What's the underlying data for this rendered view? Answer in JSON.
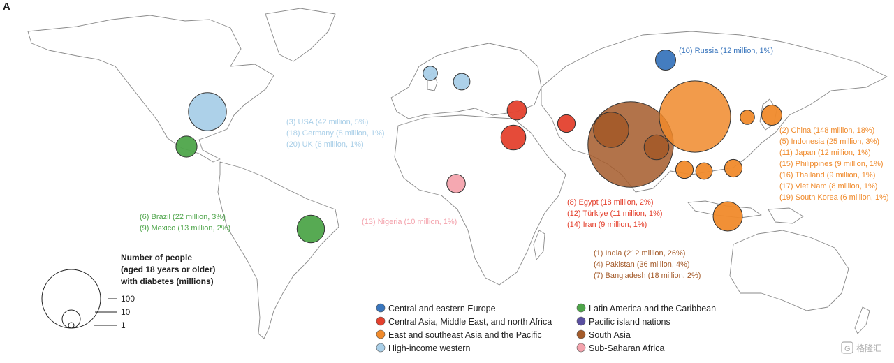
{
  "panel_label": "A",
  "colors": {
    "central_eastern_europe": "#3a76bd",
    "central_asia_mena": "#e4412e",
    "east_se_asia_pacific": "#f08a2b",
    "high_income_western": "#a9cfe8",
    "latin_america_caribbean": "#4ea54a",
    "pacific_islands": "#5a4fa0",
    "south_asia": "#a45b2a",
    "sub_saharan_africa": "#f4a3ad"
  },
  "size_legend": {
    "title": [
      "Number of people",
      "(aged 18 years or older)",
      "with diabetes (millions)"
    ],
    "items": [
      {
        "label": "100",
        "value": 100
      },
      {
        "label": "10",
        "value": 10
      },
      {
        "label": "1",
        "value": 1
      }
    ]
  },
  "legend": {
    "items": [
      {
        "label": "Central and eastern Europe",
        "color": "#3a76bd"
      },
      {
        "label": "Central Asia, Middle East, and north Africa",
        "color": "#e4412e"
      },
      {
        "label": "East and southeast Asia and the Pacific",
        "color": "#f08a2b"
      },
      {
        "label": "High-income western",
        "color": "#a9cfe8"
      },
      {
        "label": "Latin America and the Caribbean",
        "color": "#4ea54a"
      },
      {
        "label": "Pacific island nations",
        "color": "#5a4fa0"
      },
      {
        "label": "South Asia",
        "color": "#a45b2a"
      },
      {
        "label": "Sub-Saharan Africa",
        "color": "#f4a3ad"
      }
    ]
  },
  "annotations": {
    "russia": {
      "color": "#3a76bd",
      "lines": [
        "(10) Russia (12 million, 1%)"
      ]
    },
    "high_income": {
      "color": "#a9cfe8",
      "lines": [
        "(3) USA (42 million, 5%)",
        "(18) Germany (8 million, 1%)",
        "(20) UK (6 million, 1%)"
      ]
    },
    "latin": {
      "color": "#4ea54a",
      "lines": [
        "(6) Brazil (22 million, 3%)",
        "(9) Mexico (13 million, 2%)"
      ]
    },
    "nigeria": {
      "color": "#f4a3ad",
      "lines": [
        "(13) Nigeria (10 million, 1%)"
      ]
    },
    "mena": {
      "color": "#e4412e",
      "lines": [
        "(8) Egypt (18 million, 2%)",
        "(12) Türkiye (11 million, 1%)",
        "(14) Iran (9 million, 1%)"
      ]
    },
    "south_asia": {
      "color": "#a45b2a",
      "lines": [
        "(1) India (212 million, 26%)",
        "(4) Pakistan (36 million, 4%)",
        "(7) Bangladesh (18 million, 2%)"
      ]
    },
    "east_asia": {
      "color": "#f08a2b",
      "lines": [
        "(2) China (148 million, 18%)",
        "(5) Indonesia (25 million, 3%)",
        "(11) Japan (12 million, 1%)",
        "(15) Philippines (9 million, 1%)",
        "(16) Thailand (9 million, 1%)",
        "(17) Viet Nam (8 million, 1%)",
        "(19) South Korea (6 million, 1%)"
      ]
    }
  },
  "watermark": "格隆汇",
  "chart_data": {
    "type": "proportional-symbol-map",
    "title": "Number of people (aged 18 years or older) with diabetes (millions)",
    "unit": "million people",
    "countries": [
      {
        "rank": 1,
        "country": "India",
        "region": "South Asia",
        "value_millions": 212,
        "share_pct": 26
      },
      {
        "rank": 2,
        "country": "China",
        "region": "East and southeast Asia and the Pacific",
        "value_millions": 148,
        "share_pct": 18
      },
      {
        "rank": 3,
        "country": "USA",
        "region": "High-income western",
        "value_millions": 42,
        "share_pct": 5
      },
      {
        "rank": 4,
        "country": "Pakistan",
        "region": "South Asia",
        "value_millions": 36,
        "share_pct": 4
      },
      {
        "rank": 5,
        "country": "Indonesia",
        "region": "East and southeast Asia and the Pacific",
        "value_millions": 25,
        "share_pct": 3
      },
      {
        "rank": 6,
        "country": "Brazil",
        "region": "Latin America and the Caribbean",
        "value_millions": 22,
        "share_pct": 3
      },
      {
        "rank": 7,
        "country": "Bangladesh",
        "region": "South Asia",
        "value_millions": 18,
        "share_pct": 2
      },
      {
        "rank": 8,
        "country": "Egypt",
        "region": "Central Asia, Middle East, and north Africa",
        "value_millions": 18,
        "share_pct": 2
      },
      {
        "rank": 9,
        "country": "Mexico",
        "region": "Latin America and the Caribbean",
        "value_millions": 13,
        "share_pct": 2
      },
      {
        "rank": 10,
        "country": "Russia",
        "region": "Central and eastern Europe",
        "value_millions": 12,
        "share_pct": 1
      },
      {
        "rank": 11,
        "country": "Japan",
        "region": "East and southeast Asia and the Pacific",
        "value_millions": 12,
        "share_pct": 1
      },
      {
        "rank": 12,
        "country": "Türkiye",
        "region": "Central Asia, Middle East, and north Africa",
        "value_millions": 11,
        "share_pct": 1
      },
      {
        "rank": 13,
        "country": "Nigeria",
        "region": "Sub-Saharan Africa",
        "value_millions": 10,
        "share_pct": 1
      },
      {
        "rank": 14,
        "country": "Iran",
        "region": "Central Asia, Middle East, and north Africa",
        "value_millions": 9,
        "share_pct": 1
      },
      {
        "rank": 15,
        "country": "Philippines",
        "region": "East and southeast Asia and the Pacific",
        "value_millions": 9,
        "share_pct": 1
      },
      {
        "rank": 16,
        "country": "Thailand",
        "region": "East and southeast Asia and the Pacific",
        "value_millions": 9,
        "share_pct": 1
      },
      {
        "rank": 17,
        "country": "Viet Nam",
        "region": "East and southeast Asia and the Pacific",
        "value_millions": 8,
        "share_pct": 1
      },
      {
        "rank": 18,
        "country": "Germany",
        "region": "High-income western",
        "value_millions": 8,
        "share_pct": 1
      },
      {
        "rank": 19,
        "country": "South Korea",
        "region": "East and southeast Asia and the Pacific",
        "value_millions": 6,
        "share_pct": 1
      },
      {
        "rank": 20,
        "country": "UK",
        "region": "High-income western",
        "value_millions": 6,
        "share_pct": 1
      }
    ]
  }
}
